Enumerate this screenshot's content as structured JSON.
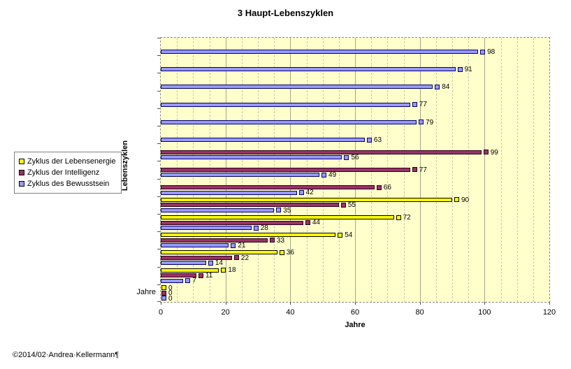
{
  "chart_data": {
    "type": "bar",
    "orientation": "horizontal",
    "title": "3 Haupt-Lebenszyklen",
    "xlabel": "Jahre",
    "ylabel": "Lebenszyklen",
    "xlim": [
      0,
      120
    ],
    "x_ticks": [
      0,
      20,
      40,
      60,
      80,
      100,
      120
    ],
    "minor_grid_step": 5,
    "major_grid_step": 20,
    "plot_background": "#FFFFCC",
    "grid": "on",
    "legend_position": "left",
    "series": [
      {
        "name": "Zyklus der Lebensenergie",
        "color": "#FFFF00",
        "border": "#000000"
      },
      {
        "name": "Zyklus der Intelligenz",
        "color": "#993366",
        "border": "#26001A"
      },
      {
        "name": "Zyklus des Bewusstsein",
        "color": "#9999FF",
        "border": "#000066"
      }
    ],
    "rows": [
      {
        "label": "",
        "values": [
          null,
          null,
          98
        ]
      },
      {
        "label": "",
        "values": [
          null,
          null,
          91
        ]
      },
      {
        "label": "",
        "values": [
          null,
          null,
          84
        ]
      },
      {
        "label": "",
        "values": [
          null,
          null,
          77
        ]
      },
      {
        "label": "",
        "values": [
          null,
          null,
          79
        ]
      },
      {
        "label": "",
        "values": [
          null,
          null,
          63
        ]
      },
      {
        "label": "",
        "values": [
          null,
          99,
          56
        ]
      },
      {
        "label": "",
        "values": [
          null,
          77,
          49
        ]
      },
      {
        "label": "",
        "values": [
          null,
          66,
          42
        ]
      },
      {
        "label": "",
        "values": [
          90,
          55,
          35
        ]
      },
      {
        "label": "",
        "values": [
          72,
          44,
          28
        ]
      },
      {
        "label": "",
        "values": [
          54,
          33,
          21
        ]
      },
      {
        "label": "",
        "values": [
          36,
          22,
          14
        ]
      },
      {
        "label": "",
        "values": [
          18,
          11,
          7
        ]
      },
      {
        "label": "Jahre",
        "values": [
          0,
          0,
          0
        ]
      }
    ]
  },
  "footer": {
    "text": "©2014/02·Andrea·Kellermann¶"
  }
}
